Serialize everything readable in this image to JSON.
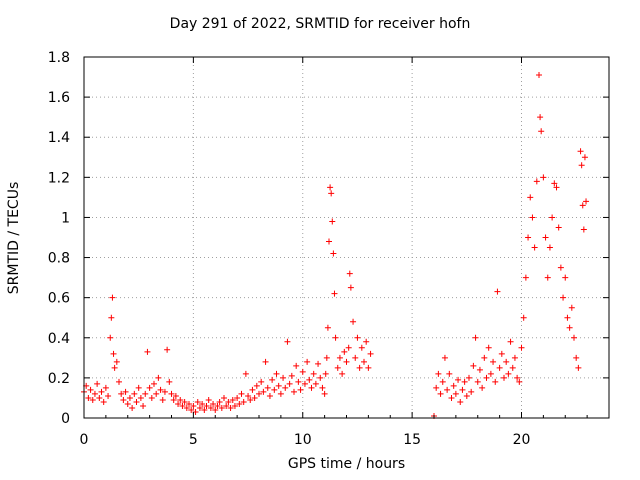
{
  "chart_data": {
    "type": "scatter",
    "title": "Day 291 of 2022, SRMTID for receiver hofn",
    "xlabel": "GPS time / hours",
    "ylabel": "SRMTID / TECUs",
    "xlim": [
      0,
      24
    ],
    "ylim": [
      0,
      1.8
    ],
    "xticks": [
      0,
      5,
      10,
      15,
      20
    ],
    "yticks": [
      0,
      0.2,
      0.4,
      0.6,
      0.8,
      1,
      1.2,
      1.4,
      1.6,
      1.8
    ],
    "xtick_labels": [
      "0",
      "5",
      "10",
      "15",
      "20"
    ],
    "ytick_labels": [
      "0",
      "0.2",
      "0.4",
      "0.6",
      "0.8",
      "1",
      "1.2",
      "1.4",
      "1.6",
      "1.8"
    ],
    "grid": true,
    "marker": "+",
    "series": [
      {
        "name": "SRMTID",
        "color": "#ff0000",
        "points": [
          [
            0.0,
            0.13
          ],
          [
            0.1,
            0.16
          ],
          [
            0.2,
            0.1
          ],
          [
            0.3,
            0.14
          ],
          [
            0.4,
            0.09
          ],
          [
            0.5,
            0.12
          ],
          [
            0.6,
            0.17
          ],
          [
            0.7,
            0.1
          ],
          [
            0.8,
            0.13
          ],
          [
            0.9,
            0.08
          ],
          [
            1.0,
            0.15
          ],
          [
            1.1,
            0.11
          ],
          [
            1.2,
            0.4
          ],
          [
            1.25,
            0.5
          ],
          [
            1.3,
            0.6
          ],
          [
            1.35,
            0.32
          ],
          [
            1.4,
            0.25
          ],
          [
            1.5,
            0.28
          ],
          [
            1.6,
            0.18
          ],
          [
            1.7,
            0.12
          ],
          [
            1.8,
            0.09
          ],
          [
            1.9,
            0.13
          ],
          [
            2.0,
            0.07
          ],
          [
            2.1,
            0.1
          ],
          [
            2.2,
            0.05
          ],
          [
            2.3,
            0.12
          ],
          [
            2.4,
            0.08
          ],
          [
            2.5,
            0.15
          ],
          [
            2.6,
            0.1
          ],
          [
            2.7,
            0.06
          ],
          [
            2.8,
            0.12
          ],
          [
            2.9,
            0.33
          ],
          [
            3.0,
            0.15
          ],
          [
            3.1,
            0.1
          ],
          [
            3.2,
            0.17
          ],
          [
            3.3,
            0.12
          ],
          [
            3.4,
            0.2
          ],
          [
            3.5,
            0.14
          ],
          [
            3.6,
            0.09
          ],
          [
            3.7,
            0.13
          ],
          [
            3.8,
            0.34
          ],
          [
            3.9,
            0.18
          ],
          [
            4.0,
            0.12
          ],
          [
            4.1,
            0.09
          ],
          [
            4.2,
            0.11
          ],
          [
            4.3,
            0.07
          ],
          [
            4.4,
            0.09
          ],
          [
            4.5,
            0.06
          ],
          [
            4.6,
            0.08
          ],
          [
            4.7,
            0.05
          ],
          [
            4.8,
            0.07
          ],
          [
            4.9,
            0.04
          ],
          [
            5.0,
            0.06
          ],
          [
            5.1,
            0.03
          ],
          [
            5.2,
            0.08
          ],
          [
            5.3,
            0.05
          ],
          [
            5.4,
            0.07
          ],
          [
            5.5,
            0.04
          ],
          [
            5.6,
            0.06
          ],
          [
            5.7,
            0.09
          ],
          [
            5.8,
            0.05
          ],
          [
            5.9,
            0.07
          ],
          [
            6.0,
            0.04
          ],
          [
            6.1,
            0.06
          ],
          [
            6.2,
            0.08
          ],
          [
            6.3,
            0.05
          ],
          [
            6.4,
            0.1
          ],
          [
            6.5,
            0.06
          ],
          [
            6.6,
            0.08
          ],
          [
            6.7,
            0.05
          ],
          [
            6.8,
            0.09
          ],
          [
            6.9,
            0.06
          ],
          [
            7.0,
            0.1
          ],
          [
            7.1,
            0.07
          ],
          [
            7.2,
            0.12
          ],
          [
            7.3,
            0.08
          ],
          [
            7.4,
            0.22
          ],
          [
            7.5,
            0.11
          ],
          [
            7.6,
            0.09
          ],
          [
            7.7,
            0.14
          ],
          [
            7.8,
            0.1
          ],
          [
            7.9,
            0.16
          ],
          [
            8.0,
            0.12
          ],
          [
            8.1,
            0.18
          ],
          [
            8.2,
            0.13
          ],
          [
            8.3,
            0.28
          ],
          [
            8.4,
            0.15
          ],
          [
            8.5,
            0.11
          ],
          [
            8.6,
            0.19
          ],
          [
            8.7,
            0.14
          ],
          [
            8.8,
            0.22
          ],
          [
            8.9,
            0.16
          ],
          [
            9.0,
            0.12
          ],
          [
            9.1,
            0.2
          ],
          [
            9.2,
            0.15
          ],
          [
            9.3,
            0.38
          ],
          [
            9.4,
            0.17
          ],
          [
            9.5,
            0.21
          ],
          [
            9.6,
            0.13
          ],
          [
            9.7,
            0.26
          ],
          [
            9.8,
            0.18
          ],
          [
            9.9,
            0.14
          ],
          [
            10.0,
            0.23
          ],
          [
            10.1,
            0.17
          ],
          [
            10.2,
            0.28
          ],
          [
            10.3,
            0.19
          ],
          [
            10.4,
            0.15
          ],
          [
            10.5,
            0.22
          ],
          [
            10.6,
            0.17
          ],
          [
            10.7,
            0.27
          ],
          [
            10.8,
            0.2
          ],
          [
            10.9,
            0.15
          ],
          [
            11.0,
            0.12
          ],
          [
            11.05,
            0.22
          ],
          [
            11.1,
            0.3
          ],
          [
            11.15,
            0.45
          ],
          [
            11.2,
            0.88
          ],
          [
            11.25,
            1.15
          ],
          [
            11.3,
            1.12
          ],
          [
            11.35,
            0.98
          ],
          [
            11.4,
            0.82
          ],
          [
            11.45,
            0.62
          ],
          [
            11.5,
            0.4
          ],
          [
            11.6,
            0.25
          ],
          [
            11.7,
            0.3
          ],
          [
            11.8,
            0.22
          ],
          [
            11.9,
            0.33
          ],
          [
            12.0,
            0.28
          ],
          [
            12.1,
            0.35
          ],
          [
            12.15,
            0.72
          ],
          [
            12.2,
            0.65
          ],
          [
            12.3,
            0.48
          ],
          [
            12.4,
            0.3
          ],
          [
            12.5,
            0.4
          ],
          [
            12.6,
            0.25
          ],
          [
            12.7,
            0.35
          ],
          [
            12.8,
            0.28
          ],
          [
            12.9,
            0.38
          ],
          [
            13.0,
            0.25
          ],
          [
            13.1,
            0.32
          ],
          [
            16.0,
            0.01
          ],
          [
            16.1,
            0.15
          ],
          [
            16.2,
            0.22
          ],
          [
            16.3,
            0.12
          ],
          [
            16.4,
            0.18
          ],
          [
            16.5,
            0.3
          ],
          [
            16.6,
            0.14
          ],
          [
            16.7,
            0.22
          ],
          [
            16.8,
            0.1
          ],
          [
            16.9,
            0.16
          ],
          [
            17.0,
            0.12
          ],
          [
            17.1,
            0.19
          ],
          [
            17.2,
            0.08
          ],
          [
            17.3,
            0.14
          ],
          [
            17.4,
            0.18
          ],
          [
            17.5,
            0.11
          ],
          [
            17.6,
            0.2
          ],
          [
            17.7,
            0.13
          ],
          [
            17.8,
            0.26
          ],
          [
            17.9,
            0.4
          ],
          [
            18.0,
            0.18
          ],
          [
            18.1,
            0.24
          ],
          [
            18.2,
            0.15
          ],
          [
            18.3,
            0.3
          ],
          [
            18.4,
            0.2
          ],
          [
            18.5,
            0.35
          ],
          [
            18.6,
            0.22
          ],
          [
            18.7,
            0.28
          ],
          [
            18.8,
            0.18
          ],
          [
            18.9,
            0.63
          ],
          [
            19.0,
            0.25
          ],
          [
            19.1,
            0.32
          ],
          [
            19.2,
            0.2
          ],
          [
            19.3,
            0.28
          ],
          [
            19.4,
            0.22
          ],
          [
            19.5,
            0.38
          ],
          [
            19.6,
            0.25
          ],
          [
            19.7,
            0.3
          ],
          [
            19.8,
            0.2
          ],
          [
            19.9,
            0.18
          ],
          [
            20.0,
            0.35
          ],
          [
            20.1,
            0.5
          ],
          [
            20.2,
            0.7
          ],
          [
            20.3,
            0.9
          ],
          [
            20.4,
            1.1
          ],
          [
            20.5,
            1.0
          ],
          [
            20.6,
            0.85
          ],
          [
            20.7,
            1.18
          ],
          [
            20.8,
            1.71
          ],
          [
            20.85,
            1.5
          ],
          [
            20.9,
            1.43
          ],
          [
            21.0,
            1.2
          ],
          [
            21.1,
            0.9
          ],
          [
            21.2,
            0.7
          ],
          [
            21.3,
            0.85
          ],
          [
            21.4,
            1.0
          ],
          [
            21.5,
            1.17
          ],
          [
            21.6,
            1.15
          ],
          [
            21.7,
            0.95
          ],
          [
            21.8,
            0.75
          ],
          [
            21.9,
            0.6
          ],
          [
            22.0,
            0.7
          ],
          [
            22.1,
            0.5
          ],
          [
            22.2,
            0.45
          ],
          [
            22.3,
            0.55
          ],
          [
            22.4,
            0.4
          ],
          [
            22.5,
            0.3
          ],
          [
            22.6,
            0.25
          ],
          [
            22.7,
            1.33
          ],
          [
            22.75,
            1.26
          ],
          [
            22.8,
            1.06
          ],
          [
            22.85,
            0.94
          ],
          [
            22.9,
            1.3
          ],
          [
            22.95,
            1.08
          ]
        ]
      }
    ]
  }
}
